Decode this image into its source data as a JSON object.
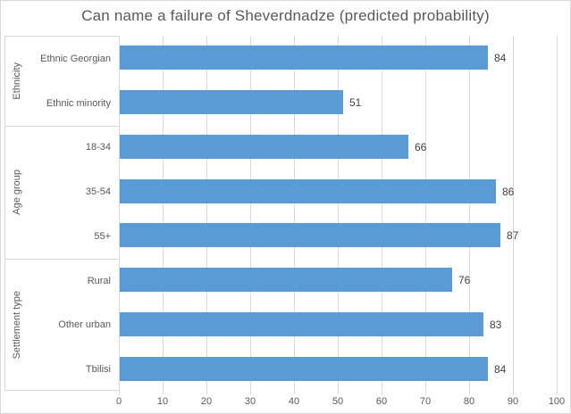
{
  "chart_data": {
    "type": "bar",
    "orientation": "horizontal",
    "title": "Can name a failure of Sheverdnadze (predicted probability)",
    "categories": [
      "Ethnic Georgian",
      "Ethnic minority",
      "18-34",
      "35-54",
      "55+",
      "Rural",
      "Other urban",
      "Tbilisi"
    ],
    "values": [
      84,
      51,
      66,
      86,
      87,
      76,
      83,
      84
    ],
    "groups": [
      {
        "label": "Ethnicity",
        "span": 2
      },
      {
        "label": "Age group",
        "span": 3
      },
      {
        "label": "Settlement type",
        "span": 3
      }
    ],
    "x_axis": {
      "min": 0,
      "max": 100,
      "step": 10,
      "tick_labels": [
        "0",
        "10",
        "20",
        "30",
        "40",
        "50",
        "60",
        "70",
        "80",
        "90",
        "100"
      ]
    },
    "xlabel": "",
    "ylabel": "",
    "grid": true,
    "legend": false,
    "data_labels": true,
    "colors": {
      "bar": "#5b9bd5",
      "gridline": "#d9d9d9",
      "axis_text": "#595959",
      "value_text": "#404040",
      "title_text": "#595959",
      "background": "#ffffff"
    }
  }
}
